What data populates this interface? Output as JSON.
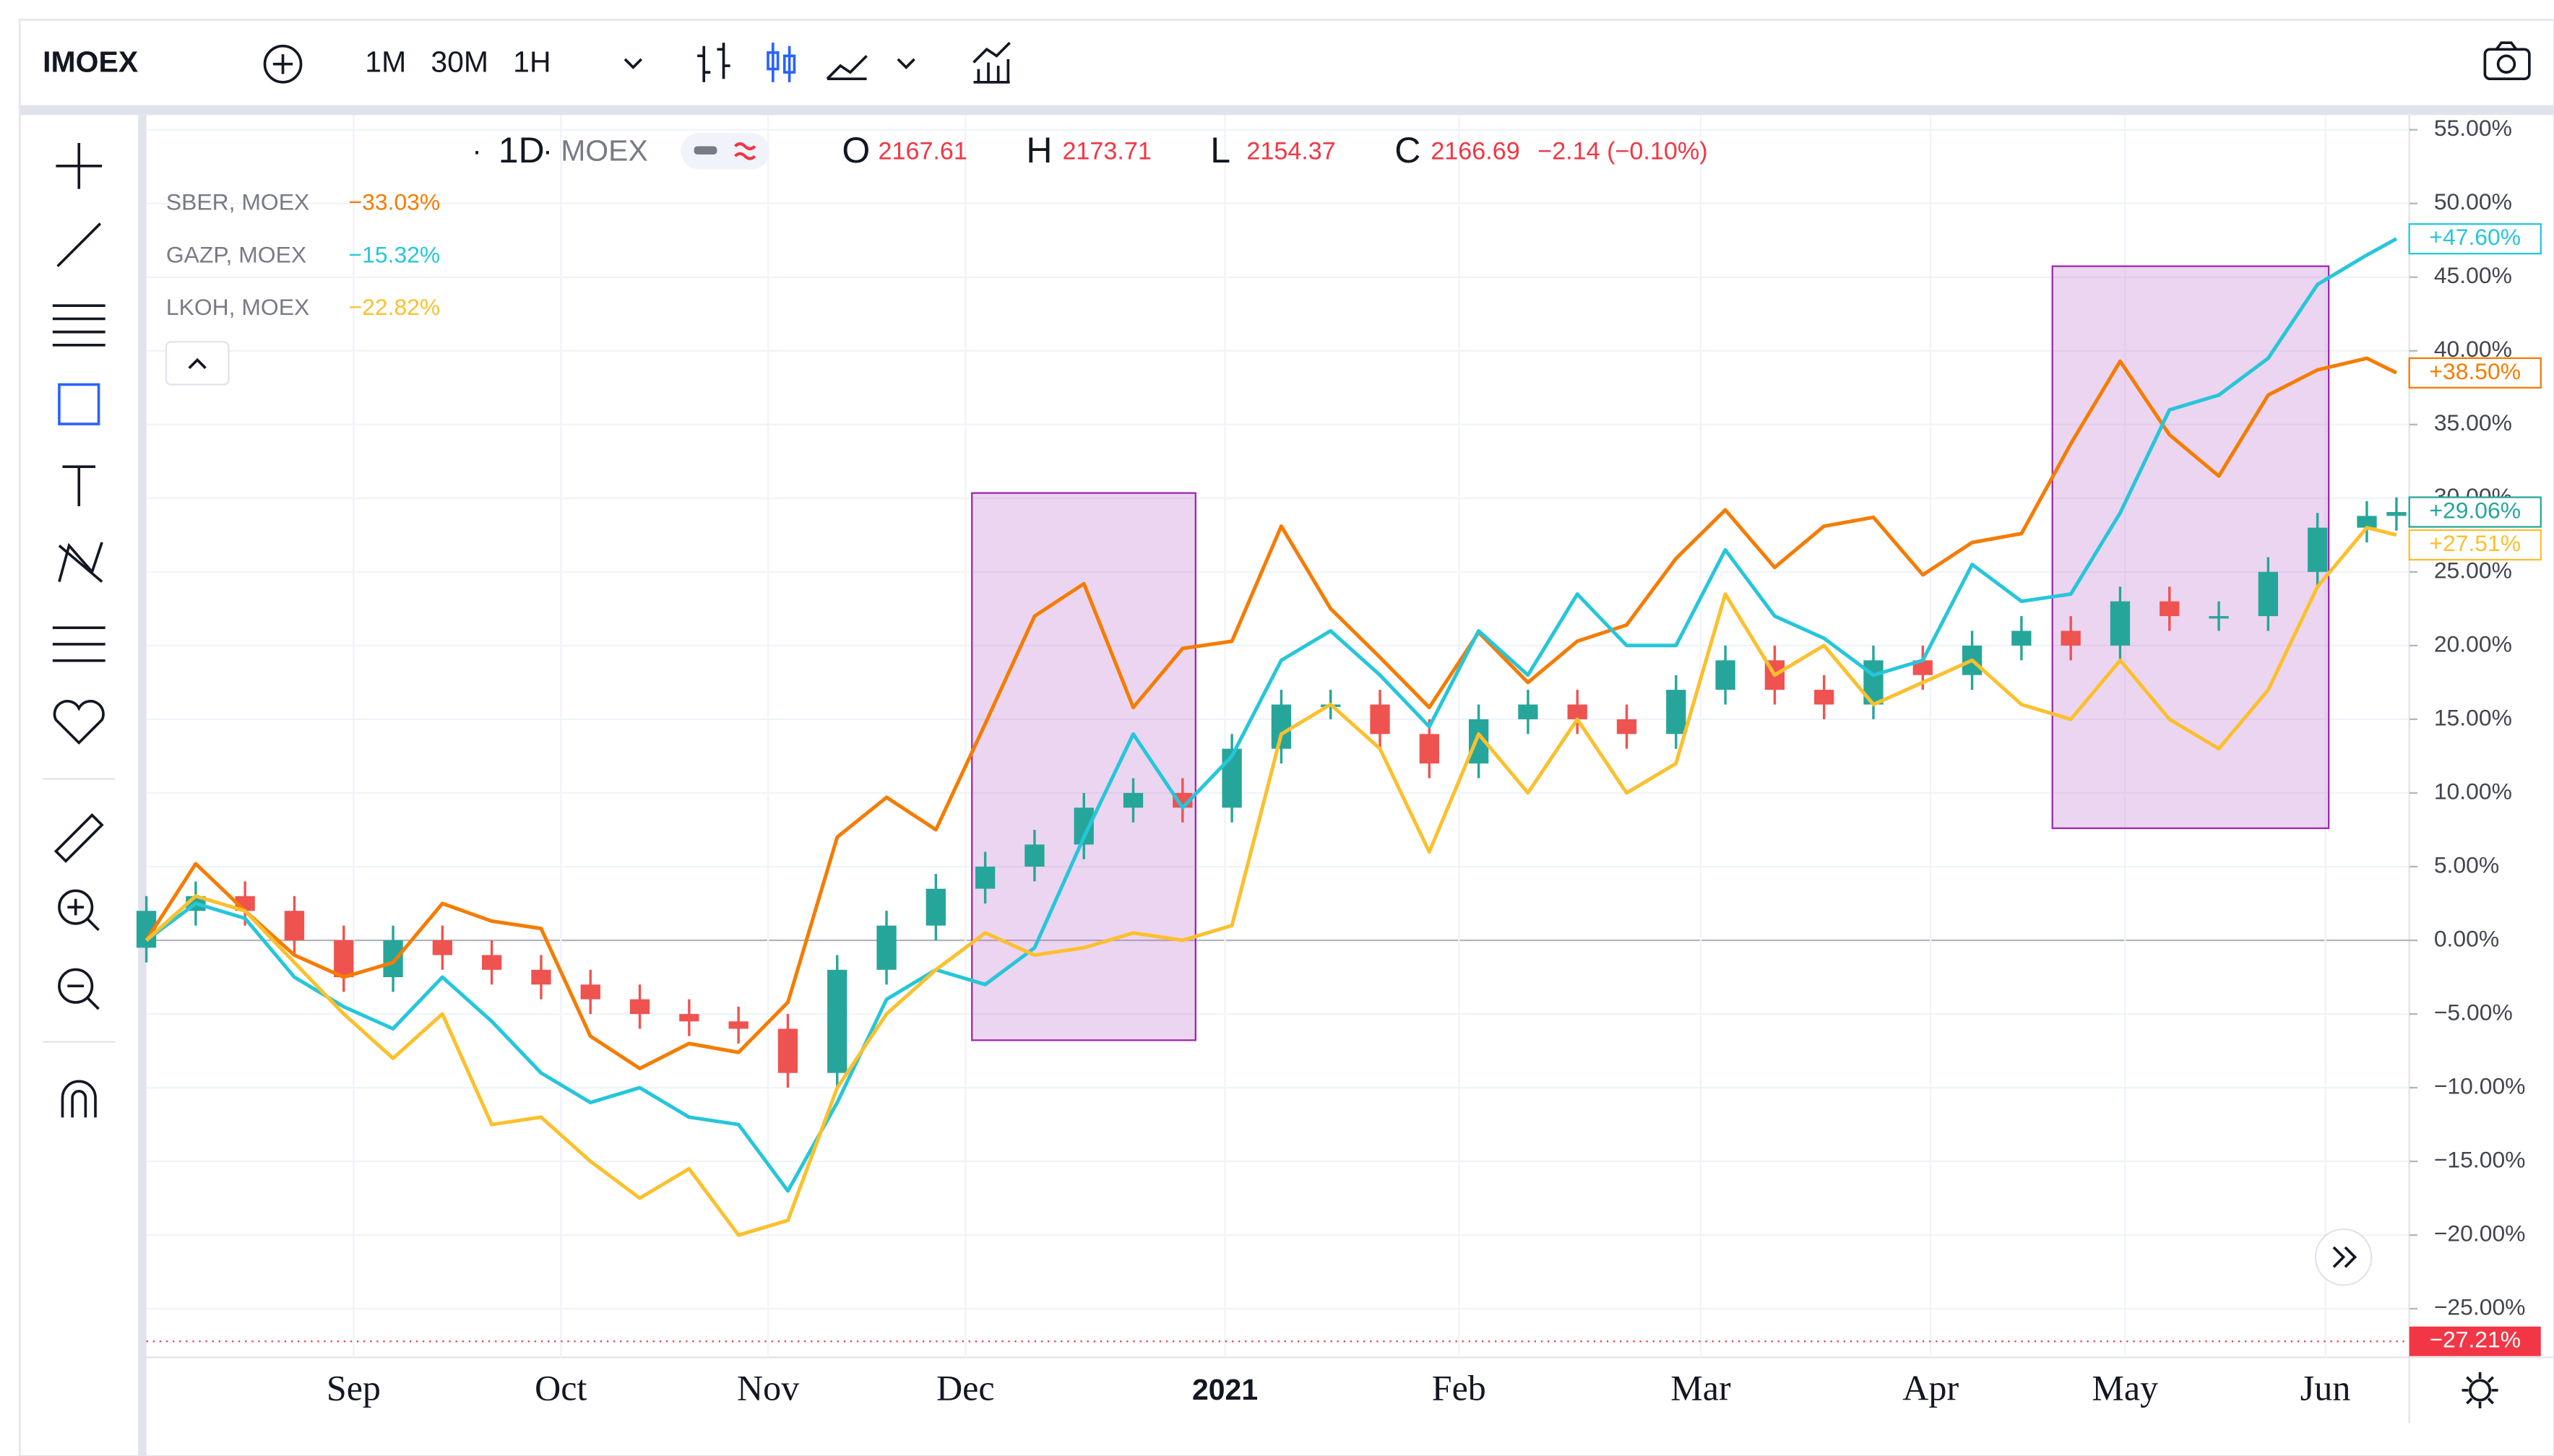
{
  "toolbar": {
    "symbol": "IMOEX",
    "intervals": [
      "1M",
      "30M",
      "1H"
    ]
  },
  "chart_data": {
    "type": "line",
    "header": {
      "interval": "1D",
      "exchange": "MOEX",
      "ohlc": [
        {
          "key": "O",
          "value": "2167.61"
        },
        {
          "key": "H",
          "value": "2173.71"
        },
        {
          "key": "L",
          "value": "2154.37"
        },
        {
          "key": "C",
          "value": "2166.69"
        }
      ],
      "change": "−2.14 (−0.10%)"
    },
    "x": [
      0,
      5,
      10,
      15,
      20,
      25,
      30,
      35,
      40,
      45,
      50,
      55,
      60,
      65,
      70,
      75,
      80,
      85,
      90,
      95,
      100,
      105,
      110,
      115,
      120,
      125,
      130,
      135,
      140,
      145,
      150,
      155,
      160,
      165,
      170,
      175,
      180,
      185,
      190,
      195,
      200,
      205,
      210,
      215,
      220,
      225,
      228
    ],
    "xlim": [
      0,
      229.3
    ],
    "xticks": [
      {
        "value": 21,
        "label": "Sep"
      },
      {
        "value": 42,
        "label": "Oct"
      },
      {
        "value": 63,
        "label": "Nov"
      },
      {
        "value": 83,
        "label": "Dec"
      },
      {
        "value": 109.3,
        "label": "2021"
      },
      {
        "value": 133,
        "label": "Feb"
      },
      {
        "value": 157.5,
        "label": "Mar"
      },
      {
        "value": 180.8,
        "label": "Apr"
      },
      {
        "value": 200.5,
        "label": "May"
      },
      {
        "value": 220.8,
        "label": "Jun"
      }
    ],
    "ylim": [
      -28.3,
      56
    ],
    "yticks": [
      {
        "value": -25,
        "label": "−25.00%"
      },
      {
        "value": -20,
        "label": "−20.00%"
      },
      {
        "value": -15,
        "label": "−15.00%"
      },
      {
        "value": -10,
        "label": "−10.00%"
      },
      {
        "value": -5,
        "label": "−5.00%"
      },
      {
        "value": 0,
        "label": "0.00%"
      },
      {
        "value": 5,
        "label": "5.00%"
      },
      {
        "value": 10,
        "label": "10.00%"
      },
      {
        "value": 15,
        "label": "15.00%"
      },
      {
        "value": 20,
        "label": "20.00%"
      },
      {
        "value": 25,
        "label": "25.00%"
      },
      {
        "value": 30,
        "label": "30.00%"
      },
      {
        "value": 35,
        "label": "35.00%"
      },
      {
        "value": 40,
        "label": "40.00%"
      },
      {
        "value": 45,
        "label": "45.00%"
      },
      {
        "value": 50,
        "label": "50.00%"
      },
      {
        "value": 55,
        "label": "55.00%"
      }
    ],
    "grid": true,
    "candles": {
      "up_color": "#26a69a",
      "down_color": "#ef5350",
      "end_label": "+29.06%",
      "open": [
        -0.5,
        2,
        3,
        2,
        0,
        -2.5,
        0,
        -1,
        -2,
        -3,
        -4,
        -5,
        -5.5,
        -6,
        -9,
        -2,
        1,
        3.5,
        5,
        6.5,
        9,
        10,
        9,
        13,
        16,
        16,
        14,
        12,
        15,
        16,
        15,
        14,
        17,
        19,
        17,
        16,
        19,
        18,
        20,
        21,
        20,
        23,
        22,
        22,
        25,
        28,
        28.8
      ],
      "high": [
        3,
        4,
        4,
        3,
        1,
        1,
        1,
        0,
        -1,
        -2,
        -3,
        -4,
        -4.5,
        -5,
        -1,
        2,
        4.5,
        6,
        7.5,
        10,
        11,
        11,
        14,
        17,
        17,
        17,
        15,
        16,
        17,
        17,
        16,
        18,
        20,
        20,
        18,
        20,
        20,
        21,
        22,
        22,
        24,
        24,
        23,
        26,
        29,
        29.8,
        30.06
      ],
      "low": [
        -1.5,
        1,
        1,
        -1,
        -3.5,
        -3.5,
        -2,
        -3,
        -4,
        -5,
        -6,
        -6.5,
        -7,
        -10,
        -10,
        -3,
        0,
        2.5,
        4,
        5.5,
        8,
        8,
        8,
        12,
        15,
        13,
        11,
        11,
        14,
        14,
        13,
        13,
        16,
        16,
        15,
        15,
        17,
        17,
        19,
        19,
        19,
        21,
        21,
        21,
        24,
        27,
        27.8
      ],
      "close": [
        2,
        3,
        2,
        0,
        -2.5,
        0,
        -1,
        -2,
        -3,
        -4,
        -5,
        -5.5,
        -6,
        -9,
        -2,
        1,
        3.5,
        5,
        6.5,
        9,
        10,
        9,
        13,
        16,
        16,
        14,
        12,
        15,
        16,
        15,
        14,
        17,
        19,
        17,
        16,
        19,
        18,
        20,
        21,
        20,
        23,
        22,
        22,
        25,
        28,
        28.8,
        29.06
      ]
    },
    "series": [
      {
        "name": "SBER, MOEX",
        "change": "−33.03%",
        "color": "#f57c00",
        "end_label": "+38.50%",
        "values": [
          0,
          5.2,
          2,
          -1,
          -2.5,
          -1.5,
          2.5,
          1.3,
          0.8,
          -6.5,
          -8.7,
          -7,
          -7.6,
          -4.2,
          7,
          9.7,
          7.5,
          14.7,
          22,
          24.2,
          15.8,
          19.8,
          20.3,
          28.1,
          22.5,
          19.2,
          15.8,
          20.9,
          17.5,
          20.3,
          21.4,
          25.9,
          29.2,
          25.3,
          28.1,
          28.7,
          24.8,
          27,
          27.6,
          33.7,
          39.3,
          34.3,
          31.5,
          37,
          38.7,
          39.5,
          38.5
        ]
      },
      {
        "name": "GAZP, MOEX",
        "change": "−15.32%",
        "color": "#26c6da",
        "end_label": "+47.60%",
        "values": [
          0,
          2.5,
          1.5,
          -2.5,
          -4.5,
          -6,
          -2.5,
          -5.5,
          -9,
          -11,
          -10,
          -12,
          -12.5,
          -17,
          -11,
          -4,
          -2,
          -3,
          -0.5,
          7,
          14,
          9,
          12.5,
          19,
          21,
          18,
          14.5,
          21,
          18,
          23.5,
          20,
          20,
          26.5,
          22,
          20.5,
          18,
          19,
          25.5,
          23,
          23.5,
          29,
          36,
          37,
          39.5,
          44.5,
          46.5,
          47.6
        ]
      },
      {
        "name": "LKOH, MOEX",
        "change": "−22.82%",
        "color": "#fbc02d",
        "end_label": "+27.51%",
        "values": [
          0,
          3,
          2,
          -1.5,
          -5,
          -8,
          -5,
          -12.5,
          -12,
          -15,
          -17.5,
          -15.5,
          -20,
          -19,
          -10,
          -5,
          -2,
          0.5,
          -1,
          -0.5,
          0.5,
          0,
          1,
          14,
          16,
          13,
          6,
          14,
          10,
          15,
          10,
          12,
          23.5,
          18,
          20,
          16,
          17.5,
          19,
          16,
          15,
          19,
          15,
          13,
          17,
          24,
          28,
          27.51
        ]
      }
    ],
    "low_line": {
      "value": -27.21,
      "label": "−27.21%",
      "color": "#f23645"
    }
  }
}
